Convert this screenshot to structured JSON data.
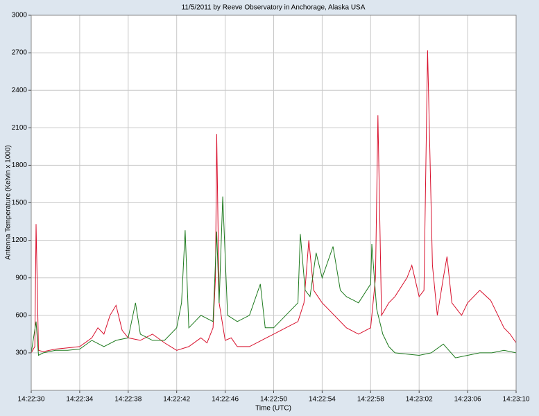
{
  "chart_data": {
    "type": "line",
    "title": "11/5/2011  by  Reeve Observatory  in  Anchorage, Alaska  USA",
    "x_label": "Time (UTC)",
    "y_label": "Antenna Temperature (Kelvin x 1000)",
    "xlim": [
      0,
      40
    ],
    "xticks": [
      {
        "value": 0,
        "label": "14:22:30"
      },
      {
        "value": 4,
        "label": "14:22:34"
      },
      {
        "value": 8,
        "label": "14:22:38"
      },
      {
        "value": 12,
        "label": "14:22:42"
      },
      {
        "value": 16,
        "label": "14:22:46"
      },
      {
        "value": 20,
        "label": "14:22:50"
      },
      {
        "value": 24,
        "label": "14:22:54"
      },
      {
        "value": 28,
        "label": "14:22:58"
      },
      {
        "value": 32,
        "label": "14:23:02"
      },
      {
        "value": 36,
        "label": "14:23:06"
      },
      {
        "value": 40,
        "label": "14:23:10"
      }
    ],
    "ylim": [
      0,
      3000
    ],
    "yticks": [
      300,
      600,
      900,
      1200,
      1500,
      1800,
      2100,
      2400,
      2700,
      3000
    ],
    "grid": true,
    "series": [
      {
        "color": "#d8102c",
        "x": [
          0,
          0.3,
          0.4,
          0.6,
          1,
          2,
          3,
          4,
          5,
          5.5,
          6,
          6.5,
          7,
          7.5,
          8,
          9,
          10,
          11,
          12,
          13,
          14,
          14.5,
          15,
          15.2,
          15.3,
          15.5,
          16,
          16.5,
          17,
          18,
          19,
          20,
          21,
          22,
          22.5,
          22.9,
          23.3,
          24,
          25,
          26,
          27,
          28,
          28.4,
          28.6,
          28.9,
          29.5,
          30,
          31,
          31.4,
          32,
          32.4,
          32.7,
          33.1,
          33.5,
          34,
          34.3,
          34.7,
          35.5,
          36,
          37,
          37.9,
          38.5,
          39,
          39.5,
          40
        ],
        "values": [
          300,
          350,
          1330,
          320,
          310,
          330,
          340,
          350,
          420,
          500,
          450,
          600,
          680,
          480,
          420,
          400,
          450,
          380,
          320,
          350,
          420,
          380,
          500,
          900,
          2050,
          700,
          400,
          420,
          350,
          350,
          400,
          450,
          500,
          550,
          700,
          1200,
          800,
          700,
          600,
          500,
          450,
          500,
          900,
          2200,
          600,
          700,
          750,
          900,
          1000,
          750,
          800,
          2720,
          1000,
          600,
          900,
          1070,
          700,
          600,
          700,
          800,
          720,
          600,
          500,
          450,
          380
        ]
      },
      {
        "color": "#1e7a1e",
        "x": [
          0,
          0.4,
          0.6,
          1,
          2,
          3,
          4,
          5,
          6,
          7,
          8,
          8.6,
          9,
          10,
          11,
          12,
          12.4,
          12.7,
          13,
          13.5,
          14,
          15,
          15.3,
          15.5,
          15.8,
          16.2,
          17,
          18,
          18.9,
          19.3,
          20,
          21,
          22,
          22.2,
          22.6,
          23,
          23.5,
          24,
          24.9,
          25.5,
          26,
          27,
          28,
          28.1,
          28.5,
          29,
          29.5,
          30,
          31,
          32,
          33,
          34,
          35,
          36,
          37,
          38,
          39,
          40
        ],
        "values": [
          300,
          550,
          280,
          300,
          320,
          320,
          330,
          400,
          350,
          400,
          420,
          700,
          450,
          400,
          400,
          500,
          700,
          1280,
          500,
          550,
          600,
          550,
          1270,
          700,
          1550,
          600,
          550,
          600,
          850,
          500,
          500,
          600,
          700,
          1250,
          800,
          750,
          1100,
          900,
          1150,
          800,
          750,
          700,
          850,
          1170,
          650,
          450,
          350,
          300,
          290,
          280,
          300,
          370,
          260,
          280,
          300,
          300,
          320,
          300
        ]
      }
    ]
  }
}
